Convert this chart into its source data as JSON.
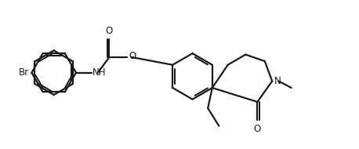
{
  "background_color": "#ffffff",
  "line_color": "#1a1a1a",
  "line_width": 1.6,
  "font_size": 8.5,
  "figsize": [
    4.58,
    1.9
  ],
  "dpi": 100,
  "xlim": [
    0.0,
    9.5
  ],
  "ylim": [
    0.5,
    4.5
  ]
}
